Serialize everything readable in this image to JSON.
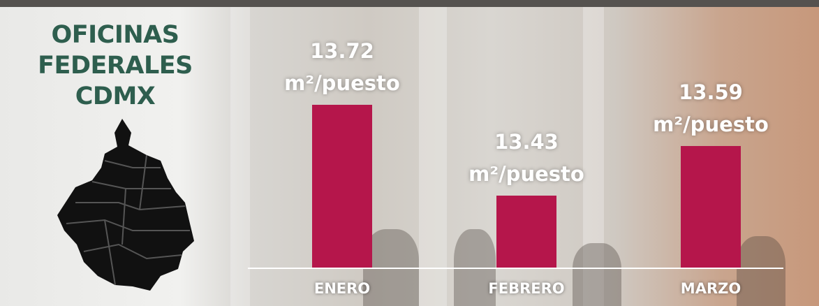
{
  "chart_data": {
    "type": "bar",
    "title": "OFICINAS FEDERALES CDMX",
    "categories": [
      "ENERO",
      "FEBRERO",
      "MARZO"
    ],
    "values": [
      13.72,
      13.43,
      13.59
    ],
    "value_labels": [
      "13.72 m²/puesto",
      "13.43 m²/puesto",
      "13.59 m²/puesto"
    ],
    "color": "#b5164b",
    "ylim": [
      13.2,
      13.75
    ]
  }
}
